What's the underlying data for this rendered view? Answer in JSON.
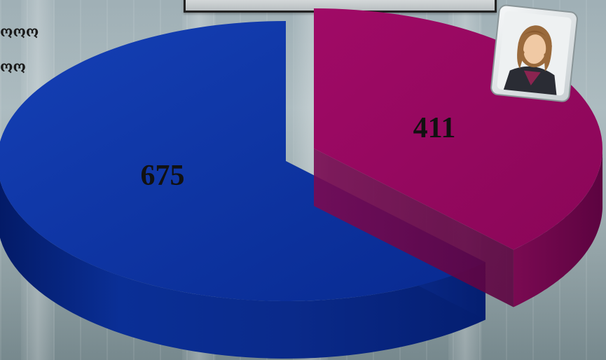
{
  "legend": {
    "items": [
      {
        "label": "ოოო"
      },
      {
        "label": "ოო"
      }
    ]
  },
  "title_box": {
    "text": ""
  },
  "colors": {
    "female": "#97075f",
    "male": "#0b2e96"
  },
  "icons": {
    "avatar": "female-user-icon"
  },
  "chart_data": {
    "type": "pie",
    "style": "3d-exploded",
    "title": "",
    "slices": [
      {
        "label": "",
        "value": 411,
        "color": "#97075f"
      },
      {
        "label": "",
        "value": 675,
        "color": "#0b2e96"
      }
    ],
    "data_labels": [
      "411",
      "675"
    ]
  }
}
